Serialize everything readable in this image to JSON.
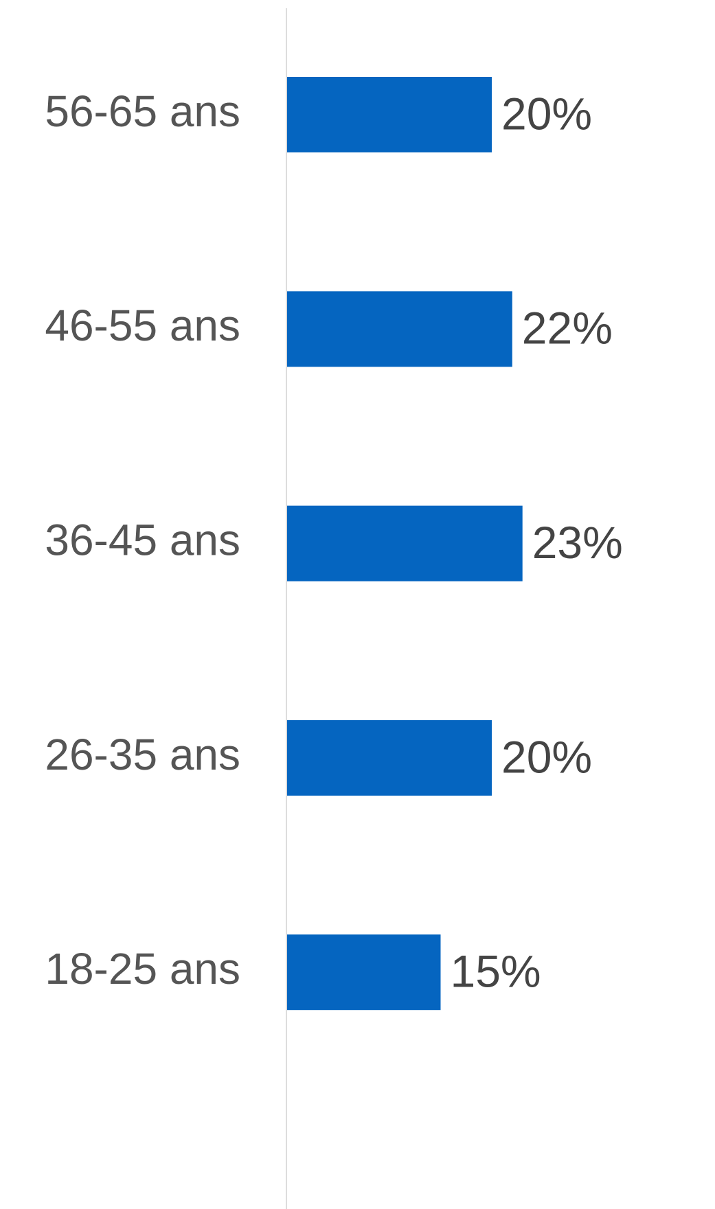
{
  "chart_data": {
    "type": "barh",
    "categories": [
      "56-65 ans",
      "46-55 ans",
      "36-45 ans",
      "26-35 ans",
      "18-25 ans"
    ],
    "values": [
      20,
      22,
      23,
      20,
      15
    ],
    "value_labels": [
      "20%",
      "22%",
      "23%",
      "20%",
      "15%"
    ],
    "color": "#0565c0"
  }
}
